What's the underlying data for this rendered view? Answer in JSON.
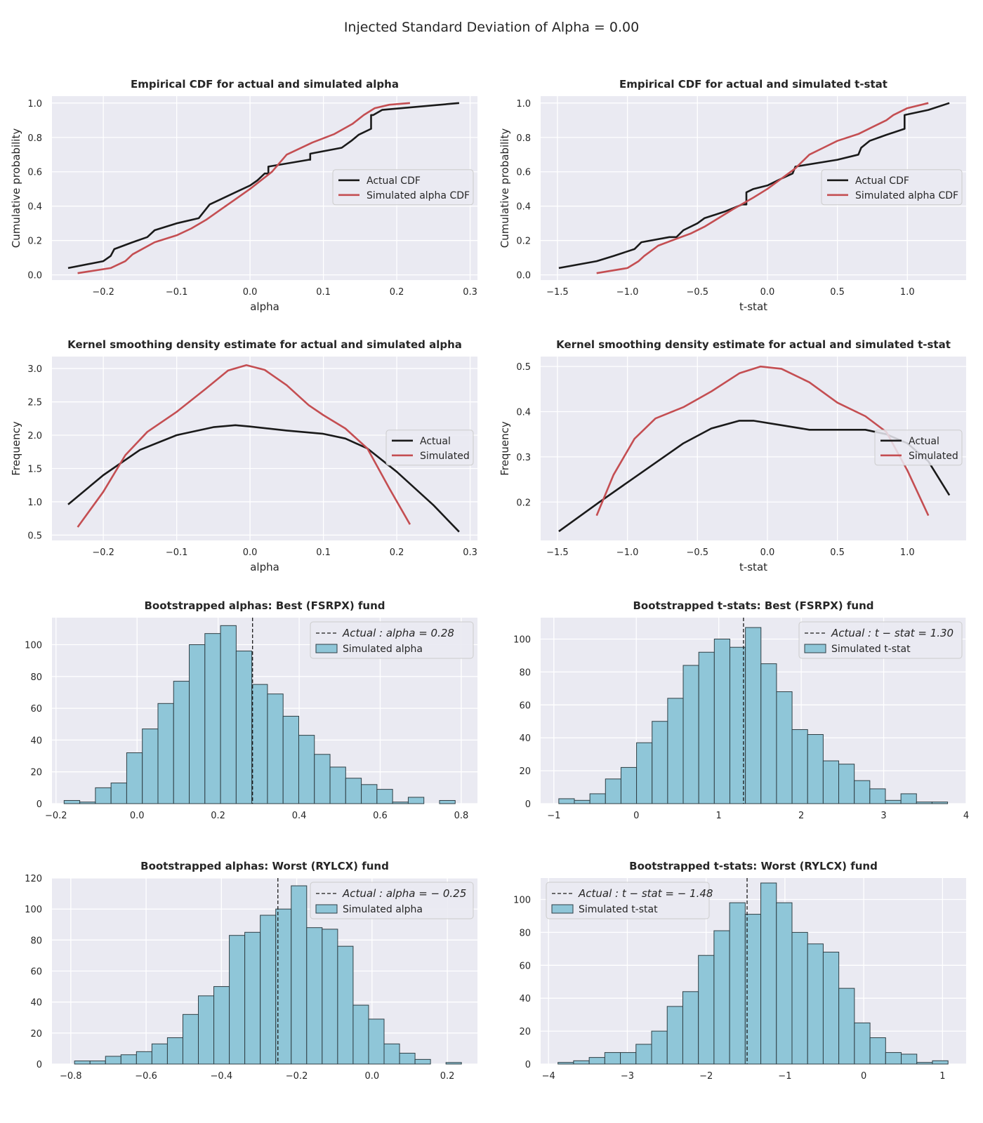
{
  "figure": {
    "suptitle": "Injected Standard Deviation of Alpha = 0.00"
  },
  "colors": {
    "background": "#eaeaf2",
    "grid": "#ffffff",
    "actual": "#1a1a1a",
    "simulated": "#c44e52",
    "bar_fill": "#8fc6d8",
    "bar_edge": "#2f3f45"
  },
  "chart_data": [
    {
      "id": "cdf-alpha",
      "type": "line",
      "title": "Empirical CDF for actual and simulated alpha",
      "xlabel": "alpha",
      "ylabel": "Cumulative probability",
      "xlim": [
        -0.27,
        0.31
      ],
      "ylim": [
        -0.03,
        1.04
      ],
      "xticks": [
        -0.2,
        -0.1,
        0.0,
        0.1,
        0.2,
        0.3
      ],
      "xtick_labels": [
        "−0.2",
        "−0.1",
        "0.0",
        "0.1",
        "0.2",
        "0.3"
      ],
      "yticks": [
        0.0,
        0.2,
        0.4,
        0.6,
        0.8,
        1.0
      ],
      "ytick_labels": [
        "0.0",
        "0.2",
        "0.4",
        "0.6",
        "0.8",
        "1.0"
      ],
      "grid": true,
      "legend_position": "center-right",
      "series": [
        {
          "name": "Actual CDF",
          "color": "#1a1a1a",
          "x": [
            -0.248,
            -0.2,
            -0.19,
            -0.185,
            -0.16,
            -0.14,
            -0.13,
            -0.1,
            -0.07,
            -0.055,
            -0.04,
            -0.02,
            0.0,
            0.01,
            0.02,
            0.025,
            0.025,
            0.08,
            0.082,
            0.082,
            0.125,
            0.138,
            0.148,
            0.165,
            0.165,
            0.168,
            0.18,
            0.285
          ],
          "y": [
            0.04,
            0.08,
            0.11,
            0.15,
            0.19,
            0.22,
            0.26,
            0.3,
            0.33,
            0.41,
            0.44,
            0.48,
            0.52,
            0.55,
            0.59,
            0.59,
            0.63,
            0.67,
            0.67,
            0.705,
            0.74,
            0.78,
            0.815,
            0.85,
            0.93,
            0.93,
            0.96,
            1.0
          ]
        },
        {
          "name": "Simulated alpha CDF",
          "color": "#c44e52",
          "x": [
            -0.235,
            -0.19,
            -0.17,
            -0.16,
            -0.13,
            -0.1,
            -0.08,
            -0.06,
            -0.04,
            -0.02,
            0.0,
            0.03,
            0.05,
            0.085,
            0.115,
            0.14,
            0.155,
            0.17,
            0.19,
            0.218
          ],
          "y": [
            0.01,
            0.04,
            0.08,
            0.12,
            0.19,
            0.23,
            0.27,
            0.32,
            0.38,
            0.44,
            0.5,
            0.6,
            0.7,
            0.77,
            0.82,
            0.88,
            0.93,
            0.97,
            0.99,
            1.0
          ]
        }
      ]
    },
    {
      "id": "cdf-tstat",
      "type": "line",
      "title": "Empirical CDF for actual and simulated t-stat",
      "xlabel": "t-stat",
      "ylabel": "Cumulative probability",
      "xlim": [
        -1.62,
        1.42
      ],
      "ylim": [
        -0.03,
        1.04
      ],
      "xticks": [
        -1.5,
        -1.0,
        -0.5,
        0.0,
        0.5,
        1.0
      ],
      "xtick_labels": [
        "−1.5",
        "−1.0",
        "−0.5",
        "0.0",
        "0.5",
        "1.0"
      ],
      "yticks": [
        0.0,
        0.2,
        0.4,
        0.6,
        0.8,
        1.0
      ],
      "ytick_labels": [
        "0.0",
        "0.2",
        "0.4",
        "0.6",
        "0.8",
        "1.0"
      ],
      "grid": true,
      "legend_position": "center-right",
      "series": [
        {
          "name": "Actual CDF",
          "color": "#1a1a1a",
          "x": [
            -1.49,
            -1.22,
            -1.1,
            -0.95,
            -0.9,
            -0.7,
            -0.65,
            -0.6,
            -0.5,
            -0.45,
            -0.3,
            -0.18,
            -0.15,
            -0.15,
            -0.1,
            0.0,
            0.1,
            0.18,
            0.2,
            0.5,
            0.65,
            0.67,
            0.73,
            0.85,
            0.98,
            0.98,
            1.15,
            1.3
          ],
          "y": [
            0.04,
            0.08,
            0.11,
            0.15,
            0.19,
            0.22,
            0.22,
            0.26,
            0.3,
            0.33,
            0.37,
            0.41,
            0.41,
            0.48,
            0.5,
            0.52,
            0.56,
            0.59,
            0.63,
            0.67,
            0.7,
            0.74,
            0.78,
            0.815,
            0.85,
            0.93,
            0.96,
            1.0
          ]
        },
        {
          "name": "Simulated alpha CDF",
          "color": "#c44e52",
          "x": [
            -1.22,
            -1.0,
            -0.92,
            -0.88,
            -0.78,
            -0.65,
            -0.55,
            -0.45,
            -0.35,
            -0.25,
            -0.1,
            0.0,
            0.1,
            0.2,
            0.3,
            0.4,
            0.5,
            0.65,
            0.75,
            0.85,
            0.9,
            1.0,
            1.15
          ],
          "y": [
            0.01,
            0.04,
            0.08,
            0.11,
            0.17,
            0.21,
            0.24,
            0.28,
            0.33,
            0.38,
            0.45,
            0.5,
            0.56,
            0.62,
            0.7,
            0.74,
            0.78,
            0.82,
            0.86,
            0.9,
            0.93,
            0.97,
            1.0
          ]
        }
      ]
    },
    {
      "id": "kde-alpha",
      "type": "line",
      "title": "Kernel smoothing density estimate for actual and simulated alpha",
      "xlabel": "alpha",
      "ylabel": "Frequency",
      "xlim": [
        -0.27,
        0.31
      ],
      "ylim": [
        0.42,
        3.18
      ],
      "xticks": [
        -0.2,
        -0.1,
        0.0,
        0.1,
        0.2,
        0.3
      ],
      "xtick_labels": [
        "−0.2",
        "−0.1",
        "0.0",
        "0.1",
        "0.2",
        "0.3"
      ],
      "yticks": [
        0.5,
        1.0,
        1.5,
        2.0,
        2.5,
        3.0
      ],
      "ytick_labels": [
        "0.5",
        "1.0",
        "1.5",
        "2.0",
        "2.5",
        "3.0"
      ],
      "grid": true,
      "legend_position": "center-right",
      "series": [
        {
          "name": "Actual",
          "color": "#1a1a1a",
          "x": [
            -0.248,
            -0.2,
            -0.15,
            -0.1,
            -0.05,
            -0.02,
            0.0,
            0.05,
            0.1,
            0.13,
            0.16,
            0.2,
            0.25,
            0.285
          ],
          "y": [
            0.96,
            1.4,
            1.78,
            2.0,
            2.12,
            2.15,
            2.13,
            2.07,
            2.02,
            1.95,
            1.8,
            1.45,
            0.95,
            0.55
          ]
        },
        {
          "name": "Simulated",
          "color": "#c44e52",
          "x": [
            -0.235,
            -0.2,
            -0.17,
            -0.14,
            -0.1,
            -0.06,
            -0.03,
            -0.005,
            0.02,
            0.05,
            0.08,
            0.1,
            0.13,
            0.16,
            0.19,
            0.218
          ],
          "y": [
            0.62,
            1.15,
            1.7,
            2.05,
            2.35,
            2.7,
            2.97,
            3.05,
            2.98,
            2.75,
            2.45,
            2.3,
            2.1,
            1.8,
            1.2,
            0.66
          ]
        }
      ]
    },
    {
      "id": "kde-tstat",
      "type": "line",
      "title": "Kernel smoothing density estimate for actual and simulated t-stat",
      "xlabel": "t-stat",
      "ylabel": "Frequency",
      "xlim": [
        -1.62,
        1.42
      ],
      "ylim": [
        0.115,
        0.522
      ],
      "xticks": [
        -1.5,
        -1.0,
        -0.5,
        0.0,
        0.5,
        1.0
      ],
      "xtick_labels": [
        "−1.5",
        "−1.0",
        "−0.5",
        "0.0",
        "0.5",
        "1.0"
      ],
      "yticks": [
        0.2,
        0.3,
        0.4,
        0.5
      ],
      "ytick_labels": [
        "0.2",
        "0.3",
        "0.4",
        "0.5"
      ],
      "grid": true,
      "legend_position": "center-right",
      "series": [
        {
          "name": "Actual",
          "color": "#1a1a1a",
          "x": [
            -1.49,
            -1.2,
            -0.9,
            -0.6,
            -0.4,
            -0.2,
            -0.1,
            0.1,
            0.3,
            0.5,
            0.7,
            0.85,
            1.0,
            1.15,
            1.3
          ],
          "y": [
            0.135,
            0.2,
            0.265,
            0.33,
            0.363,
            0.38,
            0.38,
            0.37,
            0.36,
            0.36,
            0.36,
            0.35,
            0.33,
            0.29,
            0.215
          ]
        },
        {
          "name": "Simulated",
          "color": "#c44e52",
          "x": [
            -1.22,
            -1.1,
            -0.95,
            -0.8,
            -0.6,
            -0.4,
            -0.2,
            -0.05,
            0.1,
            0.3,
            0.5,
            0.7,
            0.85,
            1.0,
            1.15
          ],
          "y": [
            0.17,
            0.26,
            0.34,
            0.385,
            0.41,
            0.445,
            0.485,
            0.5,
            0.495,
            0.465,
            0.42,
            0.39,
            0.355,
            0.27,
            0.17
          ]
        }
      ]
    },
    {
      "id": "boot-alpha-best",
      "type": "bar",
      "title": "Bootstrapped alphas: Best (FSRPX) fund",
      "xlabel": "",
      "ylabel": "",
      "xlim": [
        -0.21,
        0.84
      ],
      "ylim": [
        0,
        117
      ],
      "xticks": [
        -0.2,
        0.0,
        0.2,
        0.4,
        0.6,
        0.8
      ],
      "xtick_labels": [
        "−0.2",
        "0.0",
        "0.2",
        "0.4",
        "0.6",
        "0.8"
      ],
      "yticks": [
        0,
        20,
        40,
        60,
        80,
        100
      ],
      "ytick_labels": [
        "0",
        "20",
        "40",
        "60",
        "80",
        "100"
      ],
      "grid": true,
      "legend_position": "top-right",
      "bins_start": -0.18,
      "bin_width": 0.0386,
      "values": [
        2,
        1,
        10,
        13,
        32,
        47,
        63,
        77,
        100,
        107,
        112,
        96,
        75,
        69,
        55,
        43,
        31,
        23,
        16,
        12,
        9,
        1,
        4,
        0,
        2
      ],
      "actual": 0.285,
      "legend": {
        "actual_label": "Actual : alpha = 0.28",
        "sim_label": "Simulated alpha"
      }
    },
    {
      "id": "boot-tstat-best",
      "type": "bar",
      "title": "Bootstrapped t-stats: Best (FSRPX) fund",
      "xlabel": "",
      "ylabel": "",
      "xlim": [
        -1.16,
        4.0
      ],
      "ylim": [
        0,
        113
      ],
      "xticks": [
        -1,
        0,
        1,
        2,
        3,
        4
      ],
      "xtick_labels": [
        "−1",
        "0",
        "1",
        "2",
        "3",
        "4"
      ],
      "yticks": [
        0,
        20,
        40,
        60,
        80,
        100
      ],
      "ytick_labels": [
        "0",
        "20",
        "40",
        "60",
        "80",
        "100"
      ],
      "grid": true,
      "legend_position": "top-right",
      "bins_start": -0.94,
      "bin_width": 0.1886,
      "values": [
        3,
        2,
        6,
        15,
        22,
        37,
        50,
        64,
        84,
        92,
        100,
        95,
        107,
        85,
        68,
        45,
        42,
        26,
        24,
        14,
        9,
        2,
        6,
        1,
        1
      ],
      "actual": 1.3,
      "legend": {
        "actual_label": "Actual : t − stat = 1.30",
        "sim_label": "Simulated t-stat"
      }
    },
    {
      "id": "boot-alpha-worst",
      "type": "bar",
      "title": "Bootstrapped alphas: Worst (RYLCX) fund",
      "xlabel": "",
      "ylabel": "",
      "xlim": [
        -0.85,
        0.28
      ],
      "ylim": [
        0,
        120
      ],
      "xticks": [
        -0.8,
        -0.6,
        -0.4,
        -0.2,
        0.0,
        0.2
      ],
      "xtick_labels": [
        "−0.8",
        "−0.6",
        "−0.4",
        "−0.2",
        "0.0",
        "0.2"
      ],
      "yticks": [
        0,
        20,
        40,
        60,
        80,
        100,
        120
      ],
      "ytick_labels": [
        "0",
        "20",
        "40",
        "60",
        "80",
        "100",
        "120"
      ],
      "grid": true,
      "legend_position": "top-right",
      "bins_start": -0.79,
      "bin_width": 0.0411,
      "values": [
        2,
        2,
        5,
        6,
        8,
        13,
        17,
        32,
        44,
        50,
        83,
        85,
        96,
        100,
        115,
        88,
        87,
        76,
        38,
        29,
        13,
        7,
        3,
        0,
        1
      ],
      "actual": -0.25,
      "legend": {
        "actual_label": "Actual : alpha = − 0.25",
        "sim_label": "Simulated alpha"
      }
    },
    {
      "id": "boot-tstat-worst",
      "type": "bar",
      "title": "Bootstrapped t-stats: Worst (RYLCX) fund",
      "xlabel": "",
      "ylabel": "",
      "xlim": [
        -4.1,
        1.3
      ],
      "ylim": [
        0,
        113
      ],
      "xticks": [
        -4,
        -3,
        -2,
        -1,
        0,
        1
      ],
      "xtick_labels": [
        "−4",
        "−3",
        "−2",
        "−1",
        "0",
        "1"
      ],
      "yticks": [
        0,
        20,
        40,
        60,
        80,
        100
      ],
      "ytick_labels": [
        "0",
        "20",
        "40",
        "60",
        "80",
        "100"
      ],
      "grid": true,
      "legend_position": "top-left",
      "bins_start": -3.88,
      "bin_width": 0.198,
      "values": [
        1,
        2,
        4,
        7,
        7,
        12,
        20,
        35,
        44,
        66,
        81,
        98,
        91,
        110,
        98,
        80,
        73,
        68,
        46,
        25,
        16,
        7,
        6,
        1,
        2
      ],
      "actual": -1.48,
      "legend": {
        "actual_label": "Actual : t − stat = − 1.48",
        "sim_label": "Simulated t-stat"
      }
    }
  ]
}
